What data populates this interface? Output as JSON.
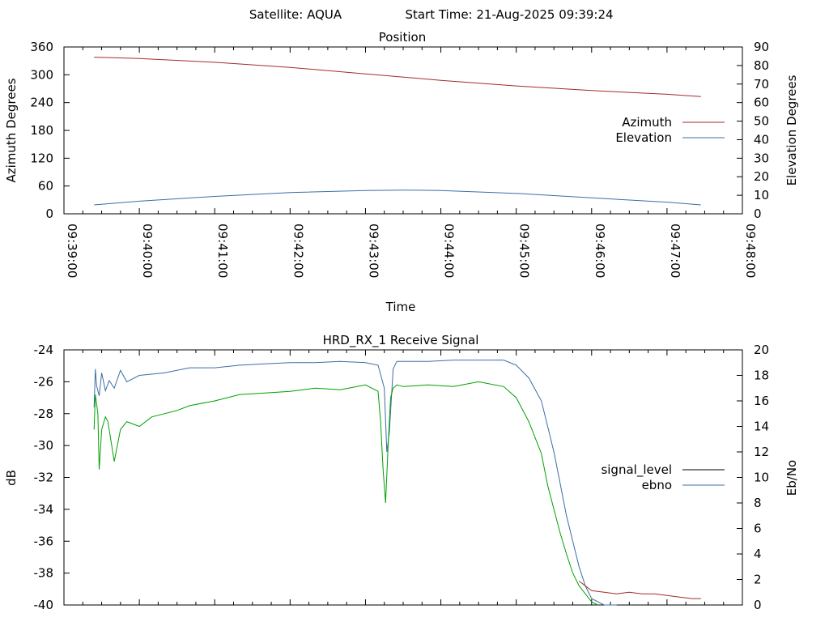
{
  "header": {
    "satellite_label": "Satellite: AQUA",
    "start_time_label": "Start Time: 21-Aug-2025 09:39:24"
  },
  "chart_data": [
    {
      "type": "line",
      "title": "Position",
      "xlabel": "Time",
      "ylabel": "Azimuth Degrees",
      "y2label": "Elevation Degrees",
      "x_tick_labels": [
        "09:39:00",
        "09:40:00",
        "09:41:00",
        "09:42:00",
        "09:43:00",
        "09:44:00",
        "09:45:00",
        "09:46:00",
        "09:47:00",
        "09:48:00"
      ],
      "x_range_seconds": [
        0,
        540
      ],
      "ylim": [
        0,
        360
      ],
      "y_ticks": [
        0,
        60,
        120,
        180,
        240,
        300,
        360
      ],
      "y2lim": [
        0,
        90
      ],
      "y2_ticks": [
        0,
        10,
        20,
        30,
        40,
        50,
        60,
        70,
        80,
        90
      ],
      "legend_position": "right",
      "grid": false,
      "series": [
        {
          "name": "Azimuth",
          "axis": "y",
          "color": "#a52a2a",
          "x": [
            24,
            60,
            120,
            180,
            240,
            300,
            360,
            420,
            480,
            507
          ],
          "values": [
            338,
            335,
            327,
            316,
            302,
            288,
            276,
            266,
            258,
            253
          ]
        },
        {
          "name": "Elevation",
          "axis": "y2",
          "color": "#3b6ea5",
          "x": [
            24,
            60,
            120,
            180,
            240,
            270,
            300,
            360,
            420,
            480,
            507
          ],
          "values": [
            4.8,
            6.8,
            9.4,
            11.5,
            12.6,
            12.8,
            12.6,
            11.0,
            8.6,
            6.3,
            4.8
          ]
        }
      ]
    },
    {
      "type": "line",
      "title": "HRD_RX_1 Receive Signal",
      "xlabel": "",
      "ylabel": "dB",
      "y2label": "Eb/No",
      "x_range_seconds": [
        0,
        540
      ],
      "ylim": [
        -40,
        -24
      ],
      "y_ticks": [
        -40,
        -38,
        -36,
        -34,
        -32,
        -30,
        -28,
        -26,
        -24
      ],
      "y2lim": [
        0,
        20
      ],
      "y2_ticks": [
        0,
        2,
        4,
        6,
        8,
        10,
        12,
        14,
        16,
        18,
        20
      ],
      "legend_position": "right",
      "grid": false,
      "legend": [
        {
          "name": "signal_level",
          "color": "#000000"
        },
        {
          "name": "ebno",
          "color": "#3b6ea5"
        }
      ],
      "series": [
        {
          "name": "ebno",
          "axis": "y2",
          "color": "#3b6ea5",
          "x": [
            24,
            25,
            26,
            28,
            30,
            33,
            36,
            40,
            45,
            50,
            60,
            80,
            100,
            120,
            140,
            160,
            180,
            200,
            220,
            240,
            250,
            255,
            257,
            259,
            262,
            265,
            270,
            290,
            310,
            330,
            350,
            360,
            370,
            380,
            385,
            390,
            395,
            400,
            405,
            410,
            415,
            420,
            430,
            440
          ],
          "values": [
            15.5,
            18.5,
            17.2,
            16.4,
            18.2,
            16.8,
            17.6,
            17.0,
            18.4,
            17.5,
            18.0,
            18.2,
            18.6,
            18.6,
            18.8,
            18.9,
            19.0,
            19.0,
            19.1,
            19.0,
            18.8,
            17.0,
            12.0,
            13.5,
            18.5,
            19.1,
            19.1,
            19.1,
            19.2,
            19.2,
            19.2,
            18.8,
            17.8,
            16.0,
            14.0,
            12.0,
            9.5,
            7.0,
            5.0,
            3.0,
            1.5,
            0.5,
            0.0,
            0.0
          ]
        },
        {
          "name": "",
          "axis": "y",
          "color": "#00a000",
          "x": [
            24,
            25,
            27,
            28,
            30,
            33,
            35,
            38,
            40,
            45,
            50,
            60,
            70,
            80,
            90,
            100,
            120,
            140,
            160,
            180,
            200,
            220,
            240,
            250,
            252,
            254,
            256,
            258,
            260,
            262,
            265,
            270,
            290,
            310,
            330,
            350,
            360,
            370,
            380,
            385,
            390,
            395,
            400,
            405,
            410,
            415,
            420,
            425
          ],
          "values": [
            -29.0,
            -26.8,
            -28.0,
            -31.5,
            -29.0,
            -28.2,
            -28.5,
            -30.0,
            -31.0,
            -29.0,
            -28.5,
            -28.8,
            -28.2,
            -28.0,
            -27.8,
            -27.5,
            -27.2,
            -26.8,
            -26.7,
            -26.6,
            -26.4,
            -26.5,
            -26.2,
            -26.6,
            -28.5,
            -31.5,
            -33.6,
            -30.0,
            -27.0,
            -26.4,
            -26.2,
            -26.3,
            -26.2,
            -26.3,
            -26.0,
            -26.3,
            -27.0,
            -28.5,
            -30.5,
            -32.5,
            -34.0,
            -35.5,
            -36.8,
            -38.0,
            -38.8,
            -39.3,
            -39.8,
            -40.0
          ]
        },
        {
          "name": "",
          "axis": "y",
          "color": "#a52a2a",
          "x": [
            410,
            420,
            430,
            440,
            450,
            460,
            470,
            480,
            490,
            500,
            507
          ],
          "values": [
            -38.5,
            -39.1,
            -39.2,
            -39.3,
            -39.2,
            -39.3,
            -39.3,
            -39.4,
            -39.5,
            -39.6,
            -39.6
          ]
        }
      ]
    }
  ]
}
